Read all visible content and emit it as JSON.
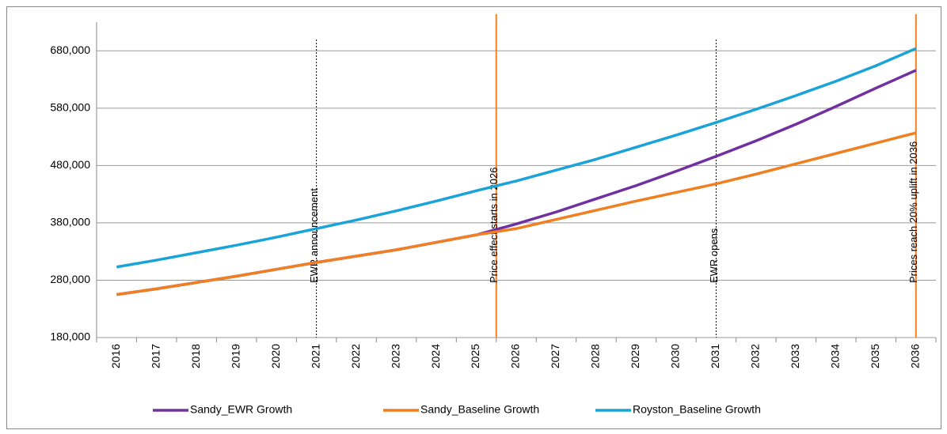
{
  "chart_data": {
    "type": "line",
    "categories": [
      "2016",
      "2017",
      "2018",
      "2019",
      "2020",
      "2021",
      "2022",
      "2023",
      "2024",
      "2025",
      "2026",
      "2027",
      "2028",
      "2029",
      "2030",
      "2031",
      "2032",
      "2033",
      "2034",
      "2035",
      "2036"
    ],
    "series": [
      {
        "name": "Sandy_EWR Growth",
        "color": "#7030a0",
        "values": [
          255000,
          265000,
          276000,
          287000,
          299000,
          311000,
          322000,
          333000,
          346000,
          359000,
          378000,
          399000,
          422000,
          445000,
          470000,
          496000,
          523000,
          552000,
          583000,
          615000,
          646000
        ]
      },
      {
        "name": "Sandy_Baseline Growth",
        "color": "#f07f22",
        "values": [
          255000,
          265000,
          276000,
          287000,
          299000,
          311000,
          322000,
          333000,
          346000,
          359000,
          370000,
          386000,
          402000,
          418000,
          433000,
          448000,
          465000,
          483000,
          501000,
          519000,
          537000
        ]
      },
      {
        "name": "Royston_Baseline Growth",
        "color": "#1aa3d9",
        "values": [
          303000,
          315000,
          328000,
          341000,
          355000,
          370000,
          385000,
          401000,
          418000,
          436000,
          453000,
          472000,
          491000,
          512000,
          533000,
          555000,
          578000,
          602000,
          627000,
          654000,
          684000
        ]
      }
    ],
    "annotations": [
      {
        "label": "EWR announcement",
        "x": 2021,
        "style": "dotted",
        "color": "#000000"
      },
      {
        "label": "Price effect starts in 2026",
        "x": 2025.5,
        "style": "solid",
        "color": "#f07f22"
      },
      {
        "label": "EWR opens",
        "x": 2031,
        "style": "dotted",
        "color": "#000000"
      },
      {
        "label": "Prices reach 20% uplift in 2036",
        "x": 2036,
        "style": "solid",
        "color": "#f07f22"
      }
    ],
    "ylim": [
      180000,
      730000
    ],
    "yticks": [
      {
        "value": 180000,
        "label": "180,000"
      },
      {
        "value": 280000,
        "label": "280,000"
      },
      {
        "value": 380000,
        "label": "380,000"
      },
      {
        "value": 480000,
        "label": "480,000"
      },
      {
        "value": 580000,
        "label": "580,000"
      },
      {
        "value": 680000,
        "label": "680,000"
      }
    ],
    "grid": true,
    "legend": "bottom"
  }
}
